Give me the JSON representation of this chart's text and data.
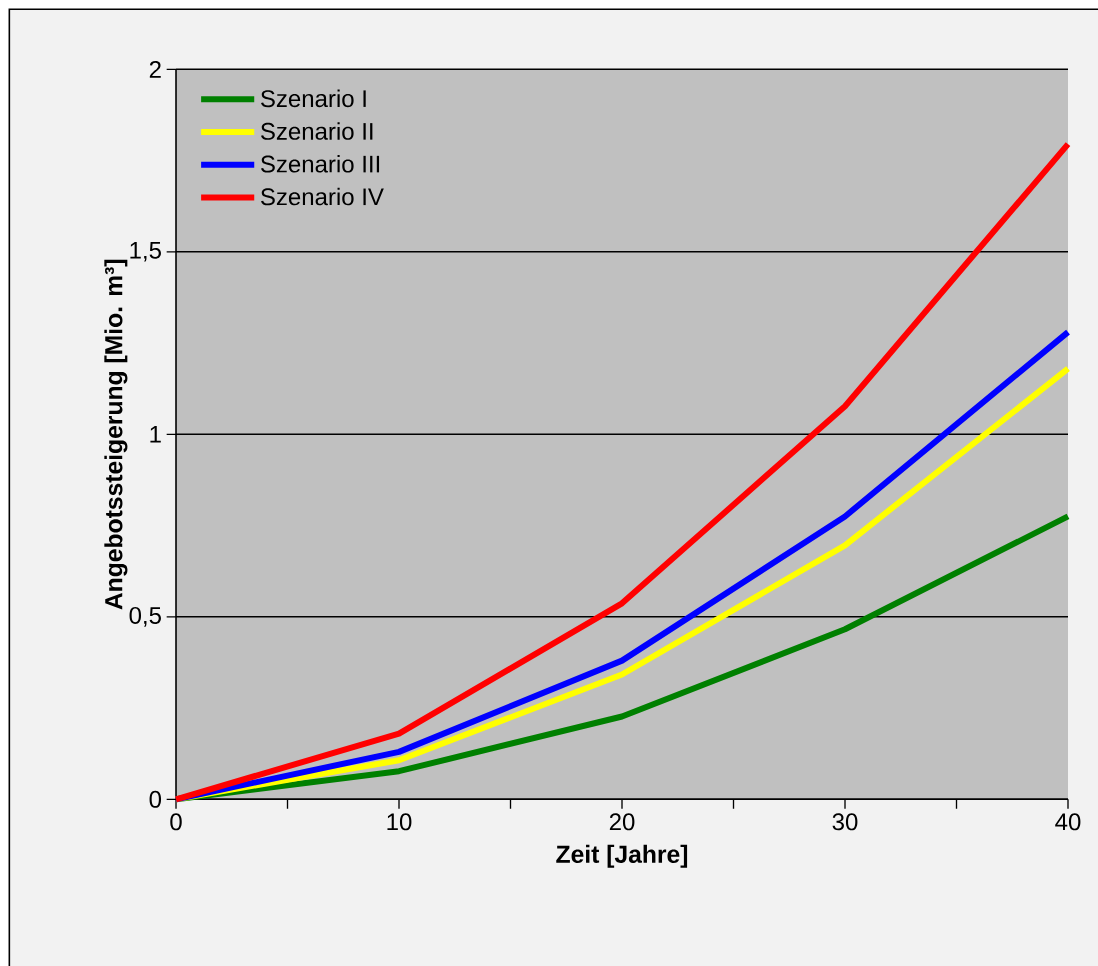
{
  "chart_data": {
    "type": "line",
    "xlabel": "Zeit [Jahre]",
    "ylabel": "Angebotssteigerung [Mio. m³]",
    "x": [
      0,
      10,
      20,
      30,
      40
    ],
    "series": [
      {
        "name": "Szenario I",
        "color": "#008000",
        "values": [
          0,
          0.077,
          0.227,
          0.466,
          0.775
        ]
      },
      {
        "name": "Szenario II",
        "color": "#ffff00",
        "values": [
          0,
          0.107,
          0.342,
          0.696,
          1.18
        ]
      },
      {
        "name": "Szenario III",
        "color": "#0000ff",
        "values": [
          0,
          0.13,
          0.38,
          0.775,
          1.28
        ]
      },
      {
        "name": "Szenario IV",
        "color": "#ff0000",
        "values": [
          0,
          0.18,
          0.537,
          1.077,
          1.795
        ]
      }
    ],
    "xlim": [
      0,
      40
    ],
    "ylim": [
      0,
      2
    ],
    "xticks": [
      0,
      {
        "value": 5,
        "label": null
      },
      10,
      {
        "value": 15,
        "label": null
      },
      20,
      {
        "value": 25,
        "label": null
      },
      30,
      {
        "value": 35,
        "label": null
      },
      40
    ],
    "yticks": [
      0,
      {
        "value": 0.5,
        "label": "0,5"
      },
      1,
      {
        "value": 1.5,
        "label": "1,5"
      },
      2
    ],
    "grid": "y",
    "legend": "top left",
    "marker": "none",
    "line_style": "solid"
  }
}
